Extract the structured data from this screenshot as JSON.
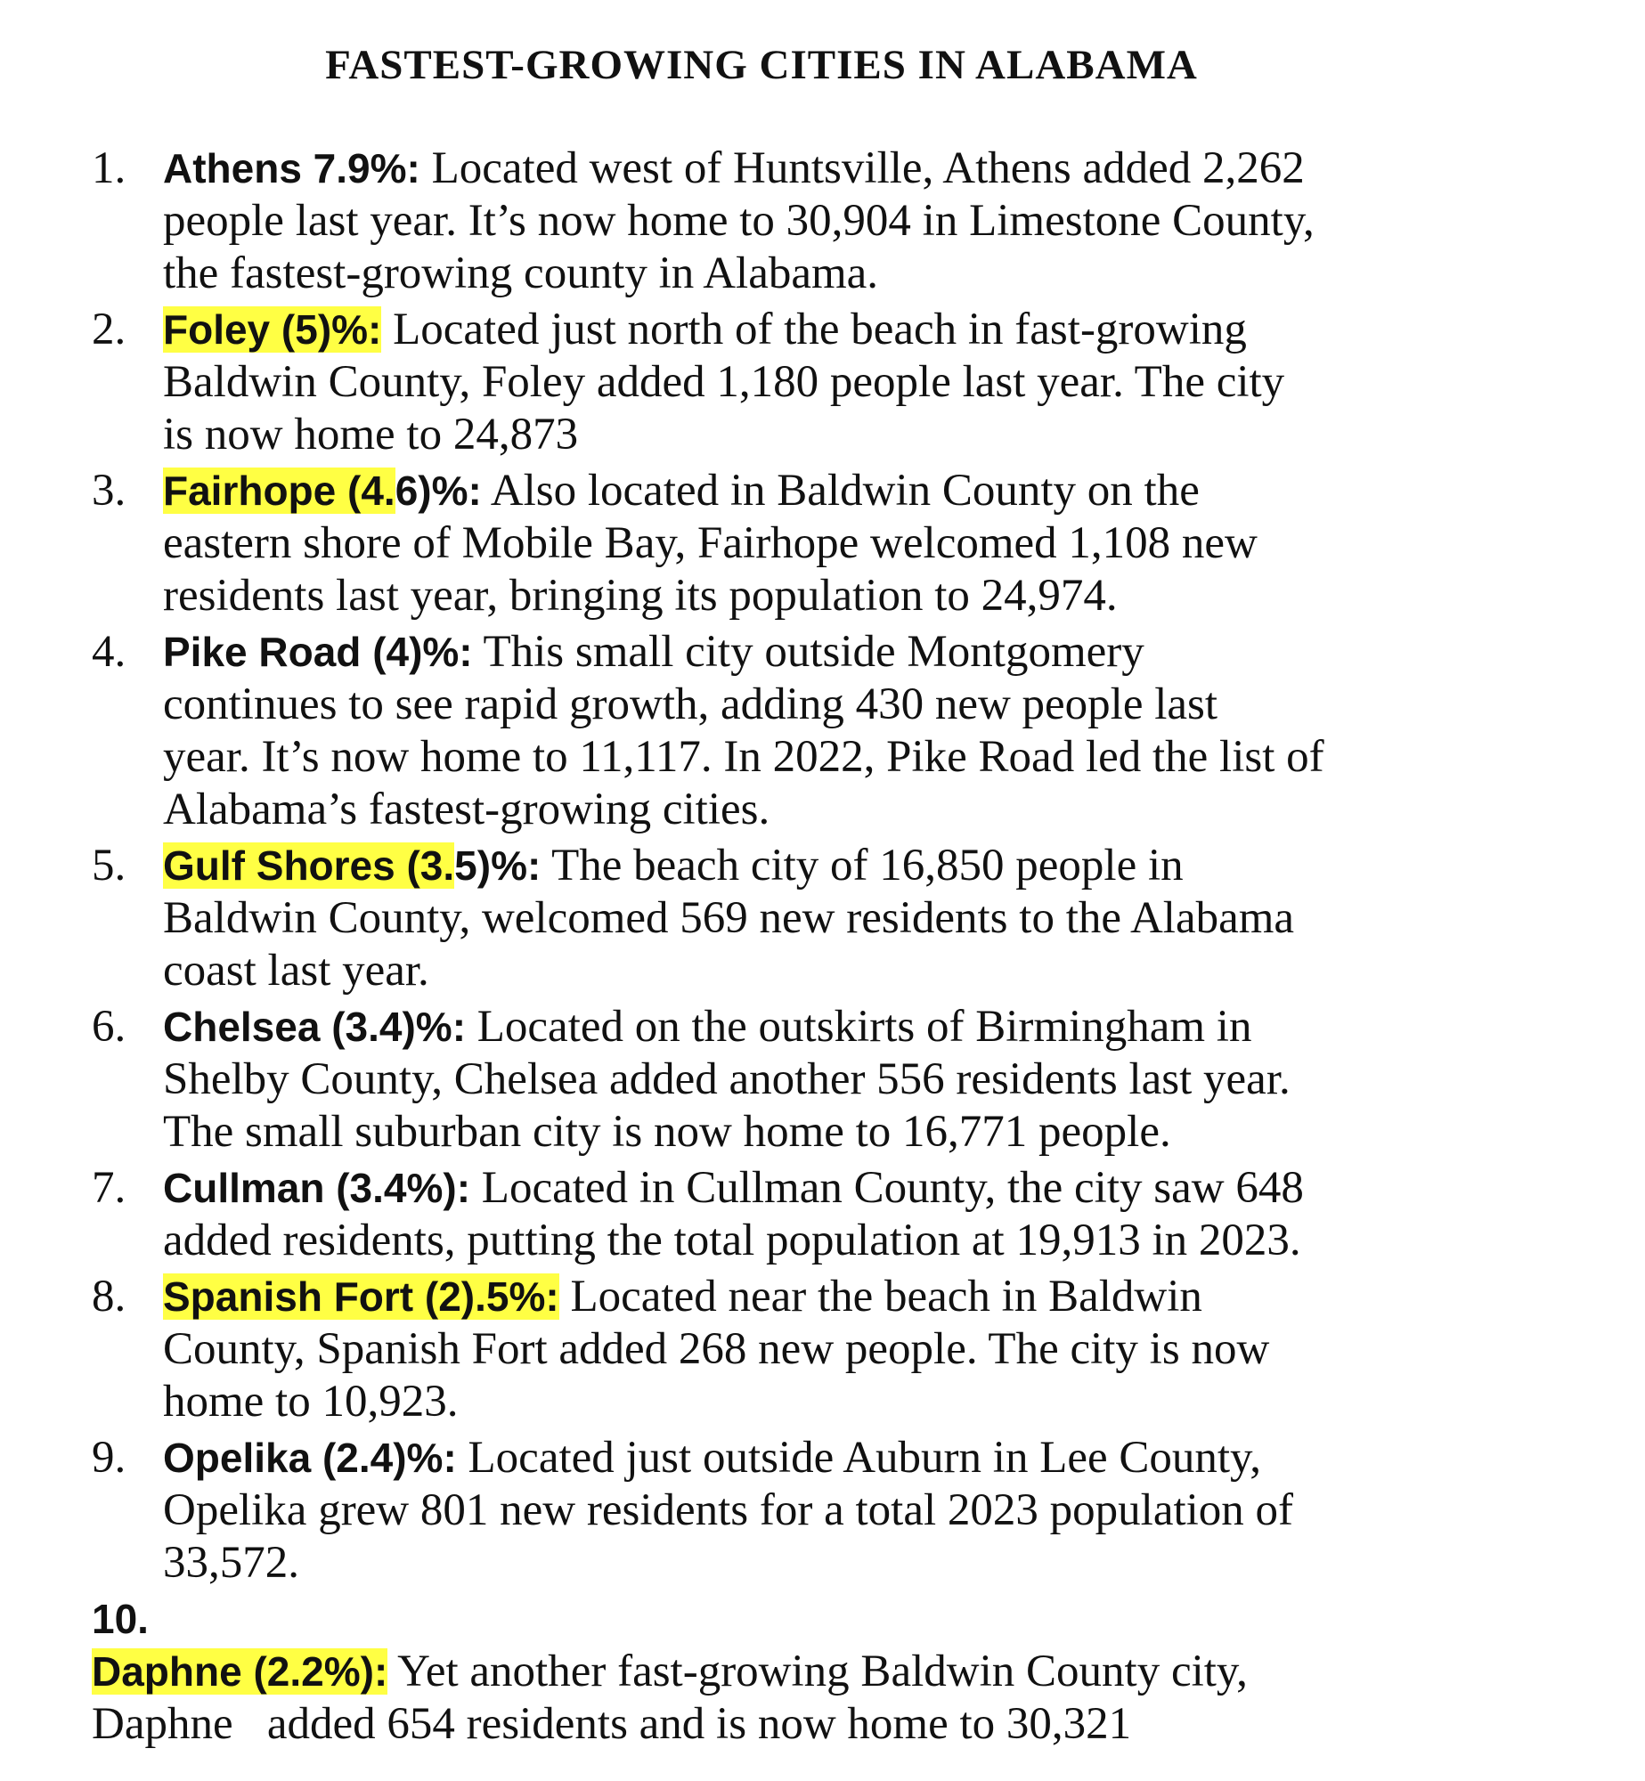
{
  "title": "FASTEST-GROWING CITIES IN ALABAMA",
  "highlight_color": "#ffff44",
  "items": [
    {
      "num": "1.",
      "label_hl": "",
      "label": "Athens 7.9%:",
      "lines": [
        " Located west of Huntsville, Athens added 2,262",
        "people last year. It’s now home to 30,904 in Limestone County,",
        "the fastest-growing county in Alabama."
      ]
    },
    {
      "num": "2.",
      "label_hl": "Foley (5)%:",
      "label": "",
      "lines": [
        " Located just north of the beach in fast-growing",
        "Baldwin County, Foley added 1,180 people last year. The city",
        "is now home to 24,873"
      ]
    },
    {
      "num": "3.",
      "label_hl": "Fairhope (4.",
      "label": "6)%:",
      "lines": [
        " Also located in Baldwin County on the",
        "eastern shore of Mobile Bay, Fairhope welcomed 1,108 new",
        "residents last year, bringing its population to 24,974."
      ]
    },
    {
      "num": "4.",
      "label_hl": "",
      "label": "Pike Road (4)%:",
      "lines": [
        " This small city outside Montgomery",
        "continues to see rapid growth, adding 430 new people last",
        "year. It’s now home to 11,117. In 2022, Pike Road led the list of",
        "Alabama’s fastest-growing cities."
      ]
    },
    {
      "num": "5.",
      "label_hl": "Gulf Shores (3.",
      "label": "5)%:",
      "lines": [
        " The beach city of 16,850 people in",
        "Baldwin County, welcomed 569 new residents to the Alabama",
        "coast last year."
      ]
    },
    {
      "num": "6.",
      "label_hl": "",
      "label": "Chelsea (3.4)%:",
      "lines": [
        " Located on the outskirts of Birmingham in",
        "Shelby County, Chelsea added another 556 residents last year.",
        "The small suburban city is now home to 16,771 people."
      ]
    },
    {
      "num": "7.",
      "label_hl": "",
      "label": "Cullman (3.4%):",
      "lines": [
        " Located in Cullman County, the city saw 648",
        "added residents, putting the total population at 19,913 in 2023."
      ]
    },
    {
      "num": "8.",
      "label_hl": "Spanish Fort (2).5%:",
      "label": "",
      "lines": [
        " Located near the beach in Baldwin",
        "County, Spanish Fort added 268 new people. The city is now",
        "home to 10,923."
      ]
    },
    {
      "num": "9.",
      "label_hl": "",
      "label": "Opelika (2.4)%:",
      "lines": [
        " Located just outside Auburn in Lee County,",
        "Opelika grew 801 new residents for a total 2023 population of",
        "33,572."
      ]
    },
    {
      "num": "10.",
      "label_hl": "Daphne (2.2%):",
      "label": "",
      "lines": [
        " Yet another fast-growing Baldwin County city,",
        "Daphne   added 654 residents and is now home to 30,321"
      ]
    }
  ]
}
